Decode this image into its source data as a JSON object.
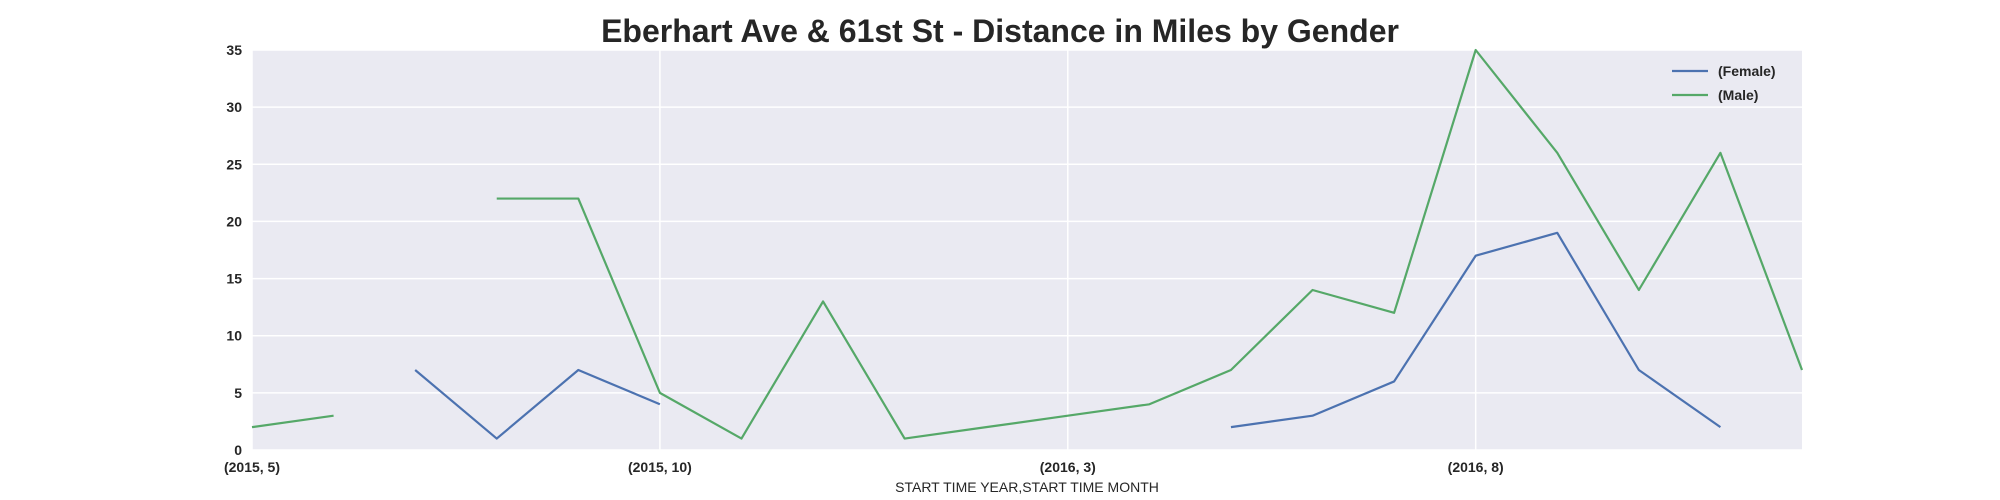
{
  "chart_data": {
    "type": "line",
    "title": "Eberhart Ave & 61st St - Distance in Miles by Gender",
    "xlabel": "START TIME YEAR,START TIME MONTH",
    "ylabel": "",
    "x": [
      "(2015, 5)",
      "(2015, 6)",
      "(2015, 7)",
      "(2015, 8)",
      "(2015, 9)",
      "(2015, 10)",
      "(2015, 11)",
      "(2015, 12)",
      "(2016, 1)",
      "(2016, 2)",
      "(2016, 3)",
      "(2016, 4)",
      "(2016, 5)",
      "(2016, 6)",
      "(2016, 7)",
      "(2016, 8)",
      "(2016, 9)",
      "(2016, 10)",
      "(2016, 11)",
      "(2016, 12)"
    ],
    "x_tick_labels": [
      "(2015, 5)",
      "(2015, 10)",
      "(2016, 3)",
      "(2016, 8)"
    ],
    "ylim": [
      0,
      35
    ],
    "y_ticks": [
      0,
      5,
      10,
      15,
      20,
      25,
      30,
      35
    ],
    "grid": true,
    "legend_position": "top-right",
    "series": [
      {
        "name": "(Female)",
        "color": "#4c72b0",
        "values": [
          null,
          null,
          7,
          1,
          7,
          4,
          null,
          null,
          null,
          null,
          null,
          null,
          2,
          3,
          6,
          17,
          19,
          7,
          2,
          null
        ]
      },
      {
        "name": "(Male)",
        "color": "#55a868",
        "values": [
          2,
          3,
          null,
          22,
          22,
          5,
          1,
          13,
          1,
          2,
          3,
          4,
          7,
          14,
          12,
          35,
          26,
          14,
          26,
          7
        ]
      }
    ],
    "colors": {
      "plot_background": "#eaeaf2",
      "grid": "#ffffff",
      "text": "#262626"
    }
  }
}
